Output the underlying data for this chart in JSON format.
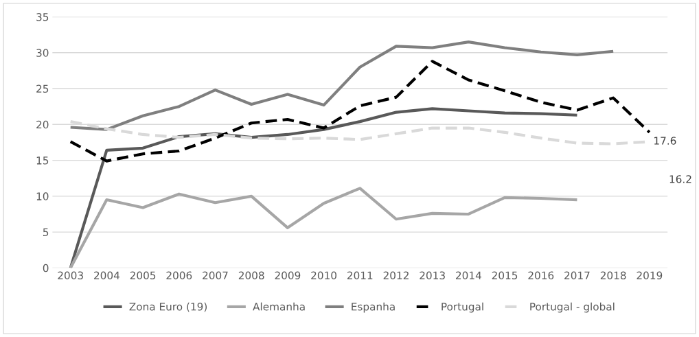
{
  "chart_data": {
    "type": "line",
    "categories": [
      "2003",
      "2004",
      "2005",
      "2006",
      "2007",
      "2008",
      "2009",
      "2010",
      "2011",
      "2012",
      "2013",
      "2014",
      "2015",
      "2016",
      "2017",
      "2018",
      "2019"
    ],
    "ylim": [
      0,
      35
    ],
    "yticks": [
      0,
      5,
      10,
      15,
      20,
      25,
      30,
      35
    ],
    "grid": "y",
    "legend": "bottom",
    "series": [
      {
        "name": "Zona Euro (19)",
        "color": "#595959",
        "line_style": "solid",
        "values": [
          0,
          16.4,
          16.7,
          18.3,
          18.7,
          18.2,
          18.6,
          19.3,
          20.4,
          21.7,
          22.2,
          21.9,
          21.6,
          21.5,
          21.3,
          null,
          null
        ]
      },
      {
        "name": "Alemanha",
        "color": "#a6a6a6",
        "line_style": "solid",
        "values": [
          0,
          9.5,
          8.4,
          10.3,
          9.1,
          10.0,
          5.6,
          9.0,
          11.1,
          6.8,
          7.6,
          7.5,
          9.8,
          9.7,
          9.5,
          null,
          null
        ]
      },
      {
        "name": "Espanha",
        "color": "#7f7f7f",
        "line_style": "solid",
        "values": [
          19.6,
          19.3,
          21.2,
          22.5,
          24.8,
          22.8,
          24.2,
          22.7,
          28.0,
          30.9,
          30.7,
          31.5,
          30.7,
          30.1,
          29.7,
          30.2,
          null
        ]
      },
      {
        "name": "Portugal",
        "color": "#000000",
        "line_style": "dashed",
        "values": [
          17.6,
          14.9,
          15.9,
          16.3,
          18.1,
          20.2,
          20.7,
          19.5,
          22.6,
          23.8,
          28.8,
          26.2,
          24.7,
          23.1,
          22.0,
          23.7,
          18.9
        ]
      },
      {
        "name": "Portugal - global",
        "color": "#d9d9d9",
        "line_style": "dashed",
        "values": [
          20.4,
          19.4,
          18.6,
          18.2,
          18.6,
          18.1,
          18.0,
          18.1,
          17.9,
          18.7,
          19.5,
          19.5,
          18.9,
          18.1,
          17.4,
          17.3,
          17.6
        ],
        "value_labels": [
          null,
          null,
          null,
          null,
          null,
          null,
          null,
          null,
          null,
          null,
          null,
          null,
          null,
          null,
          null,
          null,
          "17.6"
        ]
      }
    ],
    "annotations": [
      "16.2"
    ]
  }
}
